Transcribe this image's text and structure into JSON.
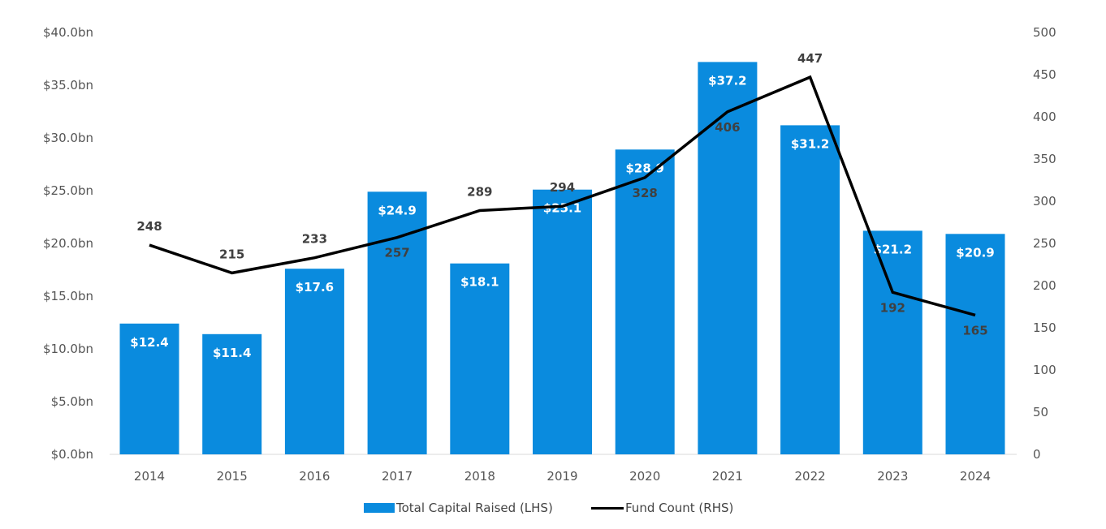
{
  "chart_data": {
    "type": "bar",
    "categories": [
      "2014",
      "2015",
      "2016",
      "2017",
      "2018",
      "2019",
      "2020",
      "2021",
      "2022",
      "2023",
      "2024"
    ],
    "series": [
      {
        "name": "Total Capital Raised (LHS)",
        "type": "bar",
        "axis": "left",
        "values": [
          12.4,
          11.4,
          17.6,
          24.9,
          18.1,
          25.1,
          28.9,
          37.2,
          31.2,
          21.2,
          20.9
        ],
        "labels": [
          "$12.4",
          "$11.4",
          "$17.6",
          "$24.9",
          "$18.1",
          "$25.1",
          "$28.9",
          "$37.2",
          "$31.2",
          "$21.2",
          "$20.9"
        ],
        "color": "#0A8BDE"
      },
      {
        "name": "Fund Count (RHS)",
        "type": "line",
        "axis": "right",
        "values": [
          248,
          215,
          233,
          257,
          289,
          294,
          328,
          406,
          447,
          192,
          165
        ],
        "labels": [
          "248",
          "215",
          "233",
          "257",
          "289",
          "294",
          "328",
          "406",
          "447",
          "192",
          "165"
        ],
        "color": "#000000"
      }
    ],
    "y_left": {
      "ylim": [
        0,
        40
      ],
      "ticks": [
        "$0.0bn",
        "$5.0bn",
        "$10.0bn",
        "$15.0bn",
        "$20.0bn",
        "$25.0bn",
        "$30.0bn",
        "$35.0bn",
        "$40.0bn"
      ]
    },
    "y_right": {
      "ylim": [
        0,
        500
      ],
      "ticks": [
        "0",
        "50",
        "100",
        "150",
        "200",
        "250",
        "300",
        "350",
        "400",
        "450",
        "500"
      ]
    },
    "legend_position": "bottom-center",
    "grid": false
  }
}
